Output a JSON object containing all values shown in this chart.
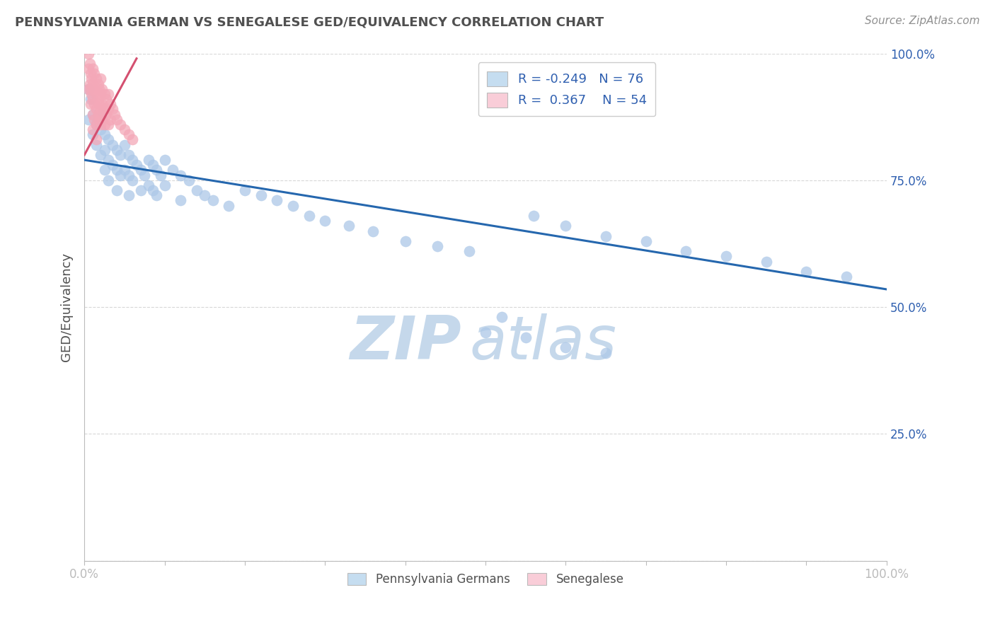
{
  "title": "PENNSYLVANIA GERMAN VS SENEGALESE GED/EQUIVALENCY CORRELATION CHART",
  "source_text": "Source: ZipAtlas.com",
  "ylabel": "GED/Equivalency",
  "xlim": [
    0,
    1
  ],
  "ylim": [
    0,
    1
  ],
  "blue_color": "#adc8e8",
  "pink_color": "#f4a8b8",
  "blue_edge_color": "#adc8e8",
  "pink_edge_color": "#f4a8b8",
  "blue_line_color": "#2567ae",
  "pink_line_color": "#d45070",
  "legend_blue_color": "#c5ddf0",
  "legend_pink_color": "#f9cdd8",
  "R_blue": -0.249,
  "N_blue": 76,
  "R_pink": 0.367,
  "N_pink": 54,
  "blue_scatter_x": [
    0.005,
    0.005,
    0.008,
    0.01,
    0.01,
    0.015,
    0.015,
    0.02,
    0.02,
    0.02,
    0.025,
    0.025,
    0.025,
    0.03,
    0.03,
    0.03,
    0.035,
    0.035,
    0.04,
    0.04,
    0.04,
    0.045,
    0.045,
    0.05,
    0.05,
    0.055,
    0.055,
    0.055,
    0.06,
    0.06,
    0.065,
    0.07,
    0.07,
    0.075,
    0.08,
    0.08,
    0.085,
    0.085,
    0.09,
    0.09,
    0.095,
    0.1,
    0.1,
    0.11,
    0.12,
    0.12,
    0.13,
    0.14,
    0.15,
    0.16,
    0.18,
    0.2,
    0.22,
    0.24,
    0.26,
    0.28,
    0.3,
    0.33,
    0.36,
    0.4,
    0.44,
    0.48,
    0.52,
    0.56,
    0.6,
    0.65,
    0.7,
    0.75,
    0.8,
    0.85,
    0.9,
    0.95,
    0.5,
    0.55,
    0.6,
    0.65
  ],
  "blue_scatter_y": [
    0.93,
    0.87,
    0.91,
    0.88,
    0.84,
    0.86,
    0.82,
    0.88,
    0.85,
    0.8,
    0.84,
    0.81,
    0.77,
    0.83,
    0.79,
    0.75,
    0.82,
    0.78,
    0.81,
    0.77,
    0.73,
    0.8,
    0.76,
    0.82,
    0.77,
    0.8,
    0.76,
    0.72,
    0.79,
    0.75,
    0.78,
    0.77,
    0.73,
    0.76,
    0.79,
    0.74,
    0.78,
    0.73,
    0.77,
    0.72,
    0.76,
    0.79,
    0.74,
    0.77,
    0.76,
    0.71,
    0.75,
    0.73,
    0.72,
    0.71,
    0.7,
    0.73,
    0.72,
    0.71,
    0.7,
    0.68,
    0.67,
    0.66,
    0.65,
    0.63,
    0.62,
    0.61,
    0.48,
    0.68,
    0.66,
    0.64,
    0.63,
    0.61,
    0.6,
    0.59,
    0.57,
    0.56,
    0.45,
    0.44,
    0.42,
    0.41
  ],
  "pink_scatter_x": [
    0.005,
    0.005,
    0.005,
    0.007,
    0.007,
    0.008,
    0.008,
    0.008,
    0.009,
    0.009,
    0.01,
    0.01,
    0.01,
    0.01,
    0.01,
    0.012,
    0.012,
    0.012,
    0.012,
    0.015,
    0.015,
    0.015,
    0.015,
    0.015,
    0.017,
    0.017,
    0.017,
    0.018,
    0.018,
    0.018,
    0.02,
    0.02,
    0.02,
    0.02,
    0.022,
    0.022,
    0.022,
    0.025,
    0.025,
    0.025,
    0.027,
    0.027,
    0.03,
    0.03,
    0.03,
    0.032,
    0.032,
    0.035,
    0.038,
    0.04,
    0.045,
    0.05,
    0.055,
    0.06
  ],
  "pink_scatter_y": [
    1.0,
    0.97,
    0.93,
    0.98,
    0.94,
    0.96,
    0.93,
    0.9,
    0.95,
    0.92,
    0.97,
    0.94,
    0.91,
    0.88,
    0.85,
    0.96,
    0.93,
    0.9,
    0.87,
    0.95,
    0.92,
    0.89,
    0.86,
    0.83,
    0.94,
    0.91,
    0.88,
    0.93,
    0.9,
    0.87,
    0.95,
    0.92,
    0.89,
    0.86,
    0.93,
    0.9,
    0.87,
    0.92,
    0.89,
    0.86,
    0.91,
    0.88,
    0.92,
    0.89,
    0.86,
    0.9,
    0.87,
    0.89,
    0.88,
    0.87,
    0.86,
    0.85,
    0.84,
    0.83
  ],
  "blue_line_x": [
    0.0,
    1.0
  ],
  "blue_line_y_start": 0.79,
  "blue_line_y_end": 0.535,
  "pink_line_x": [
    0.0,
    0.065
  ],
  "pink_line_y_start": 0.8,
  "pink_line_y_end": 0.99,
  "watermark_zip": "ZIP",
  "watermark_atlas": "atlas",
  "watermark_color": "#c5d8eb",
  "background_color": "#ffffff",
  "grid_color": "#d8d8d8",
  "title_color": "#505050",
  "axis_label_color": "#505050",
  "tick_label_color": "#3060b0",
  "right_tick_color": "#3060b0",
  "source_color": "#909090"
}
